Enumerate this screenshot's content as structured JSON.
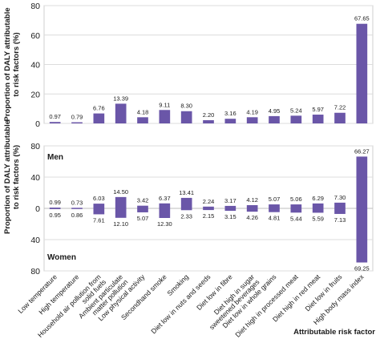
{
  "chart_data": [
    {
      "type": "bar",
      "ylabel": "Proportion of DALY attributable to risk factors (%)",
      "ylim": [
        0,
        80
      ],
      "yticks": [
        0,
        20,
        40,
        60,
        80
      ],
      "grid": true,
      "bar_color": "#6a56a8",
      "categories": [
        "Low temperature",
        "High temperature",
        "Household air pollution from solid fuels",
        "Ambient particulate matter pollution",
        "Low physical activity",
        "Secondhand smoke",
        "Smoking",
        "Diet low in nuts and seeds",
        "Diet low in fibre",
        "Diet high in sugar sweetened beverages",
        "Diet low in whole grains",
        "Diet high in processed meat",
        "Diet high in red meat",
        "Diet low in fruits",
        "High body mass index"
      ],
      "values": [
        0.97,
        0.79,
        6.76,
        13.39,
        4.18,
        9.11,
        8.3,
        2.2,
        3.16,
        4.19,
        4.95,
        5.24,
        5.97,
        7.22,
        67.65
      ],
      "value_labels": [
        "0.97",
        "0.79",
        "6.76",
        "13.39",
        "4.18",
        "9.11",
        "8.30",
        "2.20",
        "3.16",
        "4.19",
        "4.95",
        "5.24",
        "5.97",
        "7.22",
        "67.65"
      ]
    },
    {
      "type": "bar",
      "ylabel": "Proportion of DALY attributable to risk factors (%)",
      "xlabel": "Attributable risk factor",
      "ylim": [
        -80,
        80
      ],
      "yticks": [
        80,
        40,
        0,
        40,
        80
      ],
      "grid": true,
      "bar_color": "#6a56a8",
      "categories": [
        "Low temperature",
        "High temperature",
        "Household air pollution from solid fuels",
        "Ambient particulate matter pollution",
        "Low physical activity",
        "Secondhand smoke",
        "Smoking",
        "Diet low in nuts and seeds",
        "Diet low in fibre",
        "Diet high in sugar sweetened beverages",
        "Diet low in whole grains",
        "Diet high in processed meat",
        "Diet high in red meat",
        "Diet low in fruits",
        "High body mass index"
      ],
      "series": [
        {
          "name": "Men",
          "values": [
            0.99,
            0.73,
            6.03,
            14.5,
            3.42,
            6.37,
            13.41,
            2.24,
            3.17,
            4.12,
            5.07,
            5.06,
            6.29,
            7.3,
            66.27
          ],
          "value_labels": [
            "0.99",
            "0.73",
            "6.03",
            "14.50",
            "3.42",
            "6.37",
            "13.41",
            "2.24",
            "3.17",
            "4.12",
            "5.07",
            "5.06",
            "6.29",
            "7.30",
            "66.27"
          ]
        },
        {
          "name": "Women",
          "values": [
            0.95,
            0.86,
            7.61,
            12.1,
            5.07,
            12.3,
            2.33,
            2.15,
            3.15,
            4.26,
            4.81,
            5.44,
            5.59,
            7.13,
            69.25
          ],
          "value_labels": [
            "0.95",
            "0.86",
            "7.61",
            "12.10",
            "5.07",
            "12.30",
            "2.33",
            "2.15",
            "3.15",
            "4.26",
            "4.81",
            "5.44",
            "5.59",
            "7.13",
            "69.25"
          ]
        }
      ]
    }
  ]
}
